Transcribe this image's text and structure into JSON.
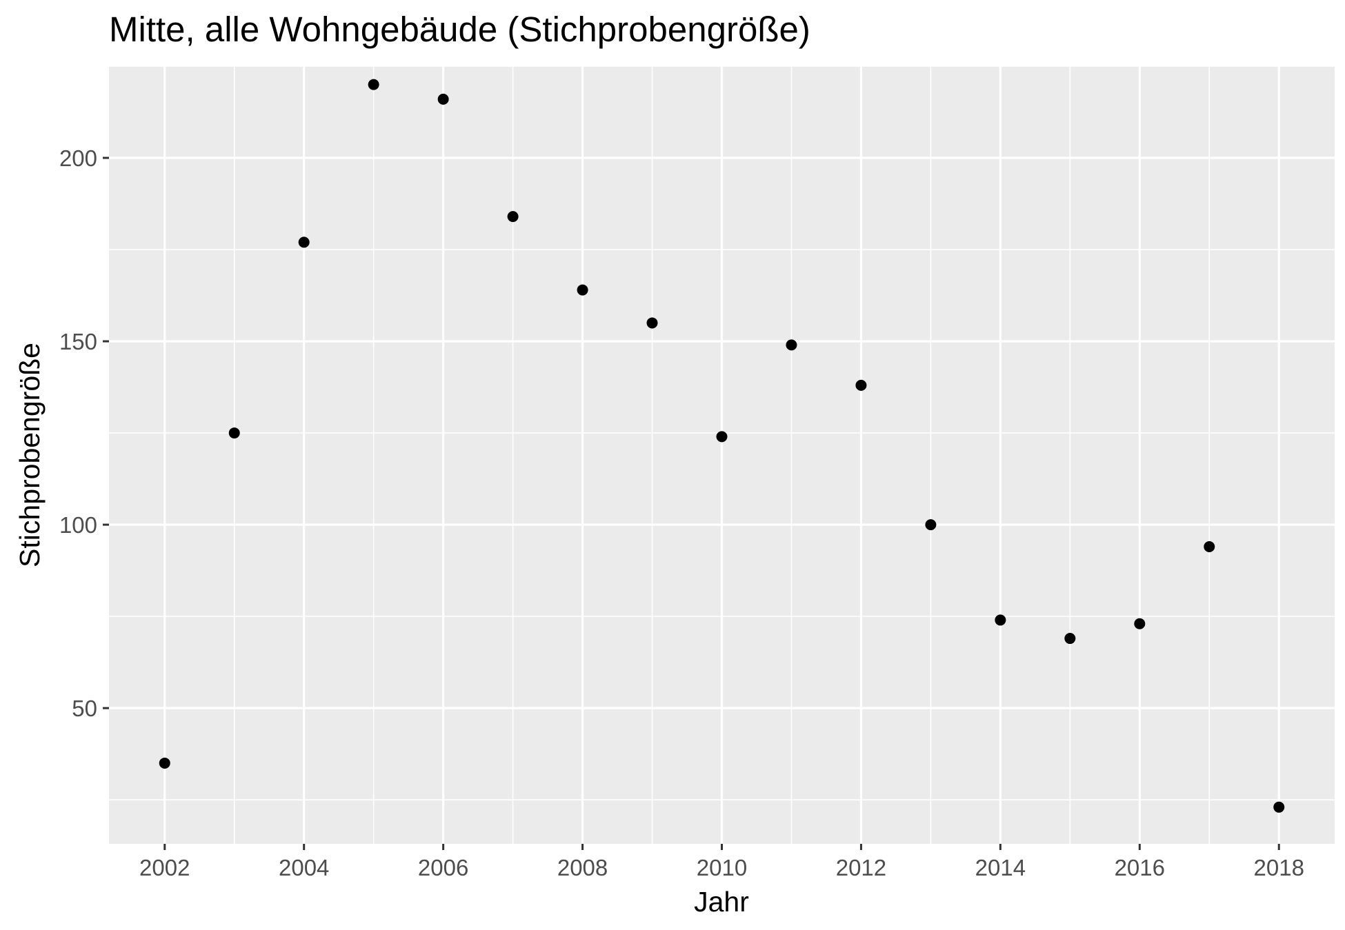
{
  "chart_data": {
    "type": "scatter",
    "title": "Mitte, alle Wohngebäude (Stichprobengröße)",
    "xlabel": "Jahr",
    "ylabel": "Stichprobengröße",
    "x": [
      2002,
      2003,
      2004,
      2005,
      2006,
      2007,
      2008,
      2009,
      2010,
      2011,
      2012,
      2013,
      2014,
      2015,
      2016,
      2017,
      2018
    ],
    "y": [
      35,
      125,
      177,
      220,
      216,
      184,
      164,
      155,
      124,
      149,
      138,
      100,
      74,
      69,
      73,
      94,
      23
    ],
    "xlim": [
      2001.2,
      2018.8
    ],
    "ylim": [
      13,
      225
    ],
    "x_ticks": [
      "2002",
      "2004",
      "2006",
      "2008",
      "2010",
      "2012",
      "2014",
      "2016",
      "2018"
    ],
    "y_ticks": [
      "50",
      "100",
      "150",
      "200"
    ],
    "grid": true,
    "point_color": "#000000",
    "panel_background": "#ebebeb",
    "grid_color": "#ffffff"
  }
}
